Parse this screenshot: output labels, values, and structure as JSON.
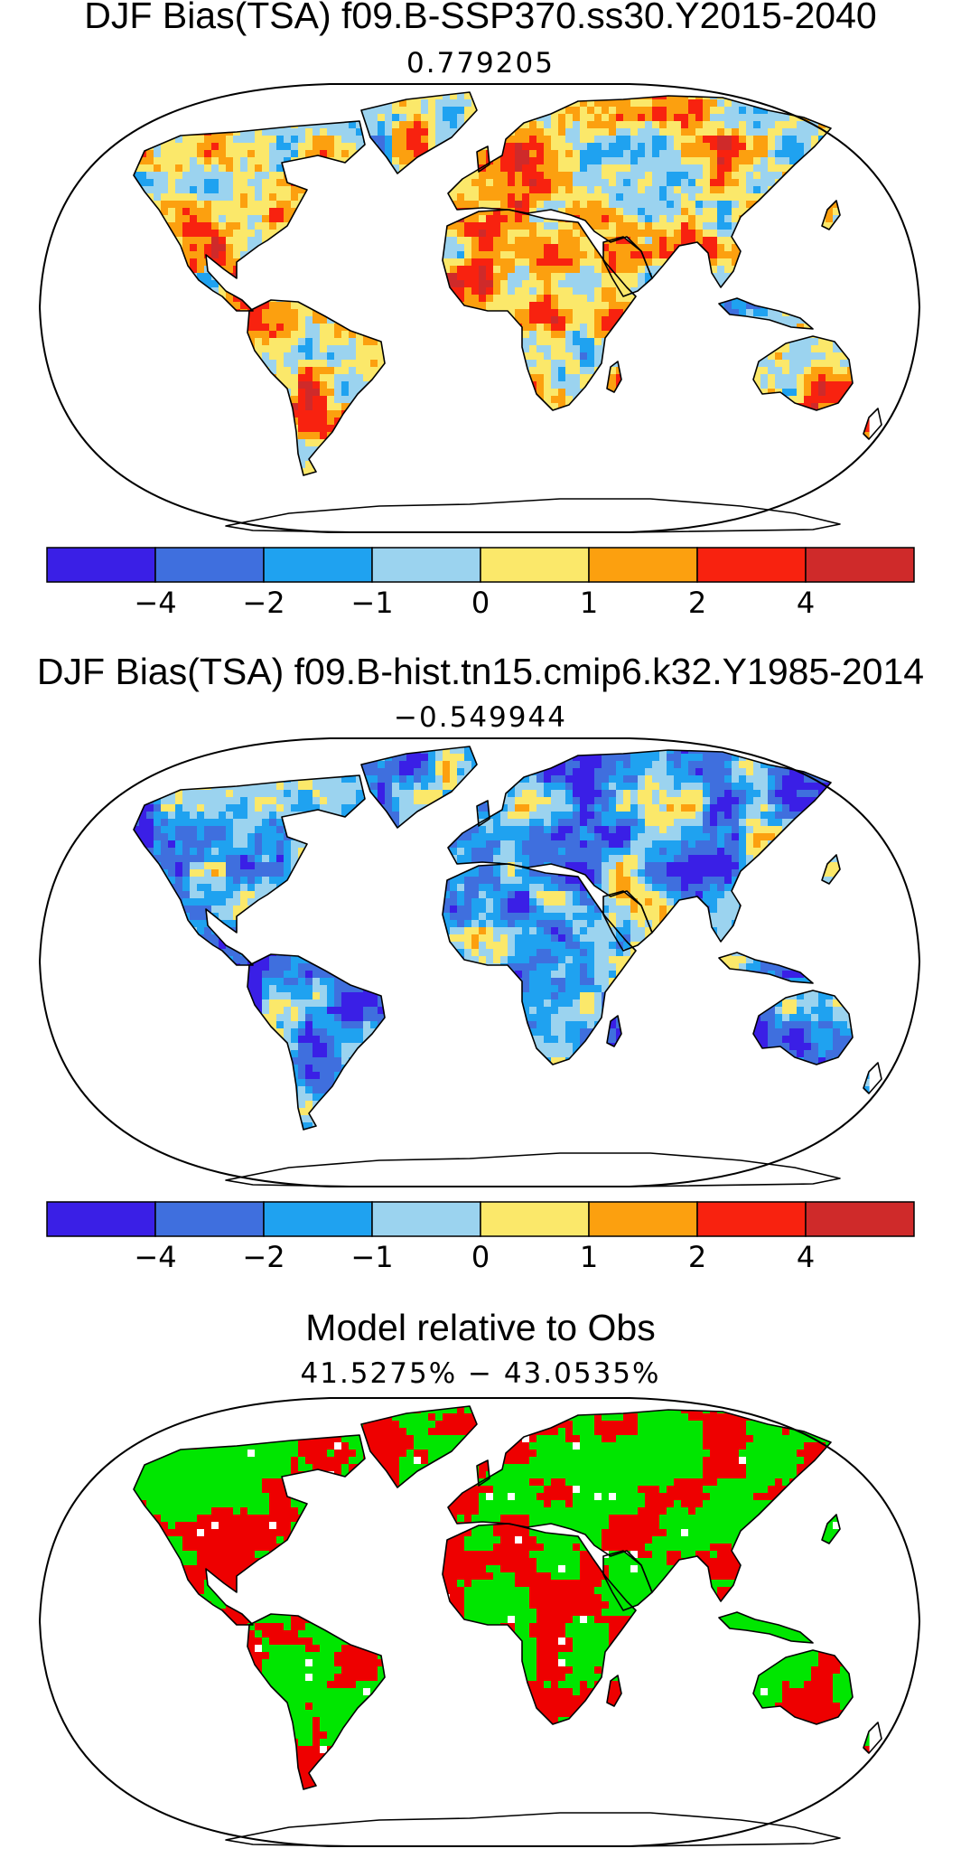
{
  "panels": [
    {
      "title": "DJF Bias(TSA) f09.B-SSP370.ss30.Y2015-2040",
      "subtitle": "0.779205"
    },
    {
      "title": "DJF Bias(TSA) f09.B-hist.tn15.cmip6.k32.Y1985-2014",
      "subtitle": "−0.549944"
    },
    {
      "title": "Model relative to Obs",
      "subtitle": "41.5275% − 43.0535%"
    }
  ],
  "colorbar": {
    "colors": [
      "#3a1fe6",
      "#3f6fde",
      "#1fa2f0",
      "#9bd3ef",
      "#fbe86a",
      "#fca00f",
      "#f8220f",
      "#cf2a2a"
    ],
    "ticks": [
      "−4",
      "−2",
      "−1",
      "0",
      "1",
      "2",
      "4"
    ]
  },
  "relative_colors": {
    "better": "#00e600",
    "worse": "#ee0000"
  }
}
